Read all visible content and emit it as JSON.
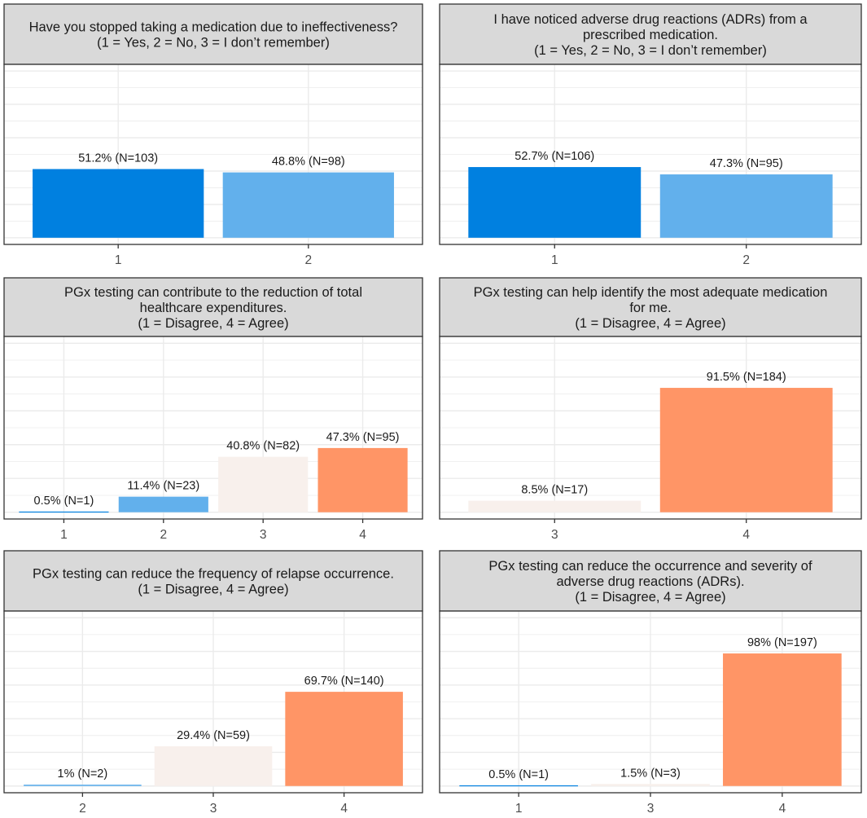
{
  "colors": {
    "1": "#0080E0",
    "2": "#62B0EC",
    "3": "#F8F0EC",
    "4": "#FF9566",
    "strip": "#D9D9D9",
    "grid": "#EBEBEB",
    "border": "#333333"
  },
  "chart_data": [
    {
      "type": "bar",
      "title_lines": [
        "Have you stopped taking a medication due to ineffectiveness?",
        "(1 = Yes, 2 = No, 3 = I don’t remember)"
      ],
      "categories": [
        "1",
        "2"
      ],
      "values": [
        103,
        98
      ],
      "labels": [
        "51.2% (N=103)",
        "48.8% (N=98)"
      ],
      "ylim": [
        -10,
        260
      ],
      "grid": true
    },
    {
      "type": "bar",
      "title_lines": [
        "I have noticed adverse drug reactions (ADRs) from a",
        "prescribed medication.",
        "(1 = Yes, 2 = No, 3 = I don’t remember)"
      ],
      "categories": [
        "1",
        "2"
      ],
      "values": [
        106,
        95
      ],
      "labels": [
        "52.7% (N=106)",
        "47.3% (N=95)"
      ],
      "ylim": [
        -10,
        260
      ],
      "grid": true
    },
    {
      "type": "bar",
      "title_lines": [
        "PGx testing can contribute to the reduction of total",
        "healthcare expenditures.",
        "(1 = Disagree, 4 = Agree)"
      ],
      "categories": [
        "1",
        "2",
        "3",
        "4"
      ],
      "values": [
        1,
        23,
        82,
        95
      ],
      "labels": [
        "0.5% (N=1)",
        "11.4% (N=23)",
        "40.8% (N=82)",
        "47.3% (N=95)"
      ],
      "ylim": [
        -10,
        260
      ],
      "grid": true
    },
    {
      "type": "bar",
      "title_lines": [
        "PGx testing can help identify the most adequate medication",
        "for me.",
        "(1 = Disagree, 4 = Agree)"
      ],
      "categories": [
        "3",
        "4"
      ],
      "values": [
        17,
        184
      ],
      "labels": [
        "8.5% (N=17)",
        "91.5% (N=184)"
      ],
      "ylim": [
        -10,
        260
      ],
      "grid": true
    },
    {
      "type": "bar",
      "title_lines": [
        "PGx testing can reduce the frequency of relapse occurrence.",
        "(1 = Disagree, 4 = Agree)"
      ],
      "categories": [
        "2",
        "3",
        "4"
      ],
      "values": [
        2,
        59,
        140
      ],
      "labels": [
        "1% (N=2)",
        "29.4% (N=59)",
        "69.7% (N=140)"
      ],
      "ylim": [
        -10,
        260
      ],
      "grid": true
    },
    {
      "type": "bar",
      "title_lines": [
        "PGx testing can reduce the occurrence and severity of",
        "adverse drug reactions (ADRs).",
        "(1 = Disagree, 4 = Agree)"
      ],
      "categories": [
        "1",
        "3",
        "4"
      ],
      "values": [
        1,
        3,
        197
      ],
      "labels": [
        "0.5% (N=1)",
        "1.5% (N=3)",
        "98% (N=197)"
      ],
      "ylim": [
        -10,
        260
      ],
      "grid": true
    }
  ]
}
